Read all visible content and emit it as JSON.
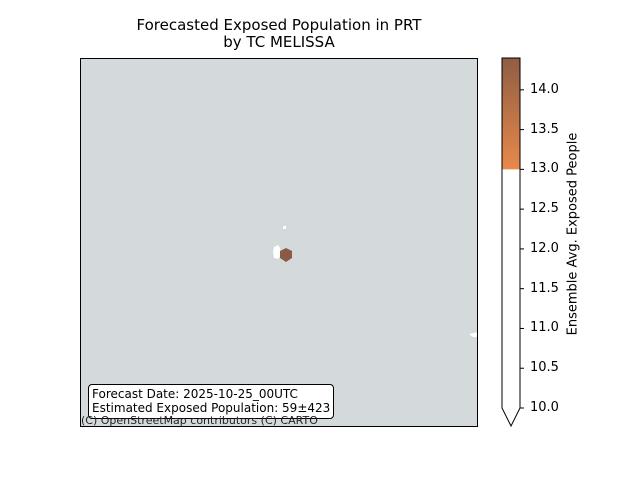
{
  "title": {
    "line1": "Forecasted Exposed Population in PRT",
    "line2": "by TC MELISSA"
  },
  "info_box": {
    "forecast_date": "Forecast Date: 2025-10-25_00UTC",
    "estimated_population": "Estimated Exposed Population: 59±423"
  },
  "attribution": "(C) OpenStreetMap contributors (C) CARTO",
  "colorbar": {
    "label": "Ensemble Avg. Exposed People",
    "ticks": [
      "14.0",
      "13.5",
      "13.0",
      "12.5",
      "12.0",
      "11.5",
      "11.0",
      "10.5",
      "10.0"
    ],
    "range": [
      10.0,
      14.4
    ],
    "gradient_start_value": 13.0,
    "colors": {
      "low": "#ffffff",
      "gradient_bottom": "#e8894a",
      "gradient_top": "#8f5d45"
    },
    "extend": "min"
  },
  "map": {
    "background_color": "#d4d9db",
    "land_color": "#ffffff",
    "exposure_hex_color": "#8b5a44"
  }
}
